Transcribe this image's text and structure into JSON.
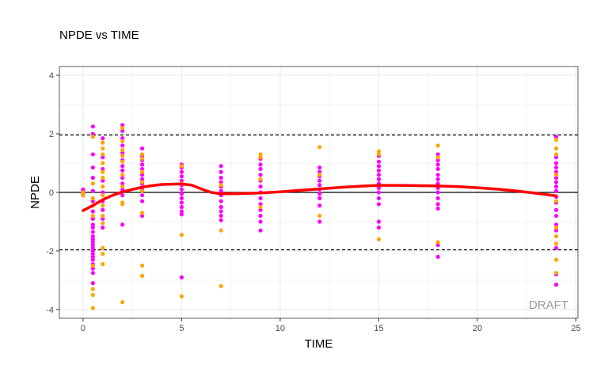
{
  "chart_data": {
    "type": "scatter",
    "title": "NPDE vs TIME",
    "xlabel": "TIME",
    "ylabel": "NPDE",
    "xlim": [
      -1.2,
      25.1
    ],
    "ylim": [
      -4.3,
      4.3
    ],
    "xticks": [
      0,
      5,
      10,
      15,
      20,
      25
    ],
    "yticks": [
      -4,
      -2,
      0,
      2,
      4
    ],
    "grid": true,
    "legend": "none",
    "reference_lines": {
      "solid": [
        0
      ],
      "dashed": [
        -1.96,
        1.96
      ]
    },
    "watermark": "DRAFT",
    "colors": {
      "points_a": "#ff00ff",
      "points_b": "#ffa500",
      "smooth": "#ff0000",
      "grid": "#ebebeb",
      "panel_border": "#333333"
    },
    "series": [
      {
        "color": "#ff00ff",
        "points": [
          [
            0,
            0.1
          ],
          [
            0,
            0.05
          ],
          [
            0,
            0.0
          ],
          [
            0,
            -0.05
          ],
          [
            0,
            -0.1
          ],
          [
            0,
            0.08
          ],
          [
            0,
            -0.02
          ],
          [
            0.5,
            2.25
          ],
          [
            0.5,
            2.0
          ],
          [
            0.5,
            1.3
          ],
          [
            0.5,
            0.85
          ],
          [
            0.5,
            0.5
          ],
          [
            0.5,
            0.05
          ],
          [
            0.5,
            -0.3
          ],
          [
            0.5,
            -0.65
          ],
          [
            0.5,
            -0.9
          ],
          [
            0.5,
            -1.1
          ],
          [
            0.5,
            -1.2
          ],
          [
            0.5,
            -1.35
          ],
          [
            0.5,
            -1.5
          ],
          [
            0.5,
            -1.6
          ],
          [
            0.5,
            -1.7
          ],
          [
            0.5,
            -1.8
          ],
          [
            0.5,
            -1.9
          ],
          [
            0.5,
            -2.0
          ],
          [
            0.5,
            -2.1
          ],
          [
            0.5,
            -2.2
          ],
          [
            0.5,
            -2.3
          ],
          [
            0.5,
            -2.45
          ],
          [
            0.5,
            -2.6
          ],
          [
            0.5,
            -2.75
          ],
          [
            0.5,
            -3.1
          ],
          [
            1,
            1.85
          ],
          [
            1,
            1.2
          ],
          [
            1,
            0.8
          ],
          [
            1,
            0.4
          ],
          [
            1,
            0.0
          ],
          [
            1,
            -0.3
          ],
          [
            1,
            -0.6
          ],
          [
            1,
            -0.9
          ],
          [
            1,
            -1.2
          ],
          [
            2,
            2.3
          ],
          [
            2,
            2.1
          ],
          [
            2,
            1.85
          ],
          [
            2,
            1.6
          ],
          [
            2,
            1.35
          ],
          [
            2,
            1.1
          ],
          [
            2,
            0.9
          ],
          [
            2,
            0.75
          ],
          [
            2,
            0.5
          ],
          [
            2,
            0.3
          ],
          [
            2,
            0.1
          ],
          [
            2,
            -0.1
          ],
          [
            2,
            -1.1
          ],
          [
            3,
            1.5
          ],
          [
            3,
            1.25
          ],
          [
            3,
            1.1
          ],
          [
            3,
            0.95
          ],
          [
            3,
            0.8
          ],
          [
            3,
            0.6
          ],
          [
            3,
            0.45
          ],
          [
            3,
            0.3
          ],
          [
            3,
            0.1
          ],
          [
            3,
            -0.1
          ],
          [
            3,
            -0.3
          ],
          [
            3,
            -0.8
          ],
          [
            5,
            0.95
          ],
          [
            5,
            0.85
          ],
          [
            5,
            0.7
          ],
          [
            5,
            0.55
          ],
          [
            5,
            0.4
          ],
          [
            5,
            0.25
          ],
          [
            5,
            0.1
          ],
          [
            5,
            -0.05
          ],
          [
            5,
            -0.2
          ],
          [
            5,
            -0.35
          ],
          [
            5,
            -0.5
          ],
          [
            5,
            -0.65
          ],
          [
            5,
            -0.75
          ],
          [
            5,
            -2.9
          ],
          [
            7,
            0.9
          ],
          [
            7,
            0.7
          ],
          [
            7,
            0.5
          ],
          [
            7,
            0.35
          ],
          [
            7,
            0.2
          ],
          [
            7,
            0.05
          ],
          [
            7,
            -0.1
          ],
          [
            7,
            -0.3
          ],
          [
            7,
            -0.5
          ],
          [
            7,
            -0.65
          ],
          [
            7,
            -0.8
          ],
          [
            7,
            -0.95
          ],
          [
            9,
            1.15
          ],
          [
            9,
            0.95
          ],
          [
            9,
            0.8
          ],
          [
            9,
            0.6
          ],
          [
            9,
            0.4
          ],
          [
            9,
            0.2
          ],
          [
            9,
            0.0
          ],
          [
            9,
            -0.2
          ],
          [
            9,
            -0.4
          ],
          [
            9,
            -0.6
          ],
          [
            9,
            -0.8
          ],
          [
            9,
            -1.0
          ],
          [
            9,
            -1.3
          ],
          [
            12,
            0.85
          ],
          [
            12,
            0.7
          ],
          [
            12,
            0.55
          ],
          [
            12,
            0.4
          ],
          [
            12,
            0.25
          ],
          [
            12,
            0.1
          ],
          [
            12,
            -0.05
          ],
          [
            12,
            -0.2
          ],
          [
            12,
            -0.45
          ],
          [
            12,
            -1.0
          ],
          [
            15,
            1.25
          ],
          [
            15,
            1.05
          ],
          [
            15,
            0.9
          ],
          [
            15,
            0.75
          ],
          [
            15,
            0.6
          ],
          [
            15,
            0.45
          ],
          [
            15,
            0.3
          ],
          [
            15,
            0.15
          ],
          [
            15,
            0.0
          ],
          [
            15,
            -0.2
          ],
          [
            15,
            -0.4
          ],
          [
            15,
            -1.0
          ],
          [
            15,
            -1.2
          ],
          [
            18,
            1.3
          ],
          [
            18,
            1.1
          ],
          [
            18,
            0.95
          ],
          [
            18,
            0.8
          ],
          [
            18,
            0.6
          ],
          [
            18,
            0.45
          ],
          [
            18,
            0.3
          ],
          [
            18,
            0.15
          ],
          [
            18,
            0.0
          ],
          [
            18,
            -0.2
          ],
          [
            18,
            -0.4
          ],
          [
            18,
            -0.55
          ],
          [
            18,
            -1.8
          ],
          [
            18,
            -2.2
          ],
          [
            24,
            1.9
          ],
          [
            24,
            1.2
          ],
          [
            24,
            1.0
          ],
          [
            24,
            0.85
          ],
          [
            24,
            0.7
          ],
          [
            24,
            0.5
          ],
          [
            24,
            0.35
          ],
          [
            24,
            0.2
          ],
          [
            24,
            0.05
          ],
          [
            24,
            -0.15
          ],
          [
            24,
            -0.35
          ],
          [
            24,
            -0.6
          ],
          [
            24,
            -0.8
          ],
          [
            24,
            -1.1
          ],
          [
            24,
            -1.3
          ],
          [
            24,
            -1.9
          ],
          [
            24,
            -2.8
          ],
          [
            24,
            -3.15
          ]
        ]
      },
      {
        "color": "#ffa500",
        "points": [
          [
            0,
            0.0
          ],
          [
            0,
            -0.1
          ],
          [
            0.5,
            1.9
          ],
          [
            0.5,
            0.3
          ],
          [
            0.5,
            -0.2
          ],
          [
            0.5,
            -0.45
          ],
          [
            0.5,
            -0.8
          ],
          [
            0.5,
            -2.5
          ],
          [
            0.5,
            -3.3
          ],
          [
            0.5,
            -3.5
          ],
          [
            0.5,
            -3.95
          ],
          [
            1,
            1.7
          ],
          [
            1,
            1.5
          ],
          [
            1,
            1.3
          ],
          [
            1,
            1.0
          ],
          [
            1,
            0.7
          ],
          [
            1,
            0.5
          ],
          [
            1,
            0.2
          ],
          [
            1,
            -0.1
          ],
          [
            1,
            -0.45
          ],
          [
            1,
            -0.8
          ],
          [
            1,
            -1.05
          ],
          [
            1,
            -1.9
          ],
          [
            1,
            -2.1
          ],
          [
            1,
            -2.45
          ],
          [
            2,
            2.2
          ],
          [
            2,
            1.75
          ],
          [
            2,
            1.45
          ],
          [
            2,
            1.25
          ],
          [
            2,
            1.05
          ],
          [
            2,
            0.6
          ],
          [
            2,
            0.2
          ],
          [
            2,
            -0.35
          ],
          [
            2,
            -0.4
          ],
          [
            2,
            -3.75
          ],
          [
            3,
            1.3
          ],
          [
            3,
            1.15
          ],
          [
            3,
            0.7
          ],
          [
            3,
            0.35
          ],
          [
            3,
            0.05
          ],
          [
            3,
            -0.7
          ],
          [
            3,
            -2.5
          ],
          [
            3,
            -2.85
          ],
          [
            5,
            0.9
          ],
          [
            5,
            0.3
          ],
          [
            5,
            -1.45
          ],
          [
            5,
            -3.55
          ],
          [
            7,
            0.25
          ],
          [
            7,
            -1.3
          ],
          [
            7,
            -3.2
          ],
          [
            9,
            1.3
          ],
          [
            9,
            1.2
          ],
          [
            9,
            0.45
          ],
          [
            9,
            -0.5
          ],
          [
            12,
            1.55
          ],
          [
            12,
            0.6
          ],
          [
            12,
            -0.8
          ],
          [
            15,
            1.4
          ],
          [
            15,
            1.3
          ],
          [
            15,
            -1.6
          ],
          [
            18,
            1.6
          ],
          [
            18,
            1.2
          ],
          [
            18,
            -1.7
          ],
          [
            24,
            1.8
          ],
          [
            24,
            1.5
          ],
          [
            24,
            1.3
          ],
          [
            24,
            0.6
          ],
          [
            24,
            -0.3
          ],
          [
            24,
            -1.2
          ],
          [
            24,
            -1.5
          ],
          [
            24,
            -1.75
          ],
          [
            24,
            -2.3
          ],
          [
            24,
            -2.75
          ]
        ]
      }
    ],
    "smooth": {
      "color": "#ff0000",
      "points": [
        [
          0,
          -0.62
        ],
        [
          0.5,
          -0.45
        ],
        [
          1,
          -0.25
        ],
        [
          1.5,
          -0.1
        ],
        [
          2,
          0.02
        ],
        [
          2.5,
          0.1
        ],
        [
          3,
          0.18
        ],
        [
          3.5,
          0.23
        ],
        [
          4,
          0.27
        ],
        [
          4.5,
          0.28
        ],
        [
          5,
          0.29
        ],
        [
          5.5,
          0.25
        ],
        [
          6,
          0.12
        ],
        [
          6.5,
          0.0
        ],
        [
          7,
          -0.05
        ],
        [
          8,
          -0.04
        ],
        [
          9,
          -0.02
        ],
        [
          10,
          0.02
        ],
        [
          11,
          0.07
        ],
        [
          12,
          0.12
        ],
        [
          13,
          0.17
        ],
        [
          14,
          0.21
        ],
        [
          15,
          0.24
        ],
        [
          16,
          0.24
        ],
        [
          17,
          0.23
        ],
        [
          18,
          0.22
        ],
        [
          19,
          0.2
        ],
        [
          20,
          0.16
        ],
        [
          21,
          0.11
        ],
        [
          22,
          0.05
        ],
        [
          23,
          -0.03
        ],
        [
          24,
          -0.12
        ]
      ]
    }
  }
}
